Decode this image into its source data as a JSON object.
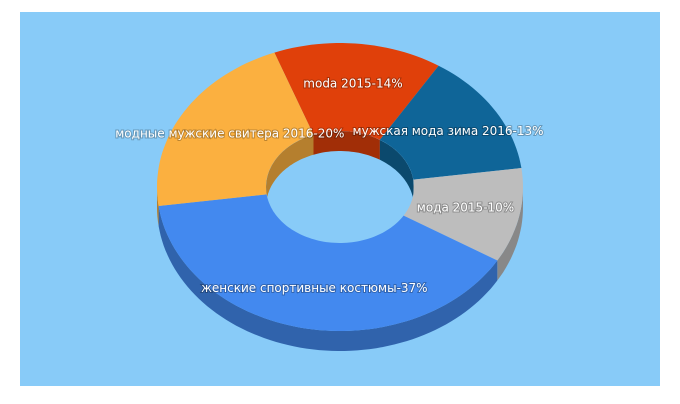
{
  "chart_data": {
    "type": "donut3d",
    "values": [
      14,
      13,
      10,
      37,
      20
    ],
    "value_labels": [
      "moda 2015-14%",
      "мужская мода зима 2016-13%",
      "мода 2015-10%",
      "женские спортивные костюмы-37%",
      "модные мужские свитера 2016-20%"
    ],
    "colors": [
      "#e0400a",
      "#0f6598",
      "#bdbdbd",
      "#4389ef",
      "#fbb040"
    ]
  }
}
